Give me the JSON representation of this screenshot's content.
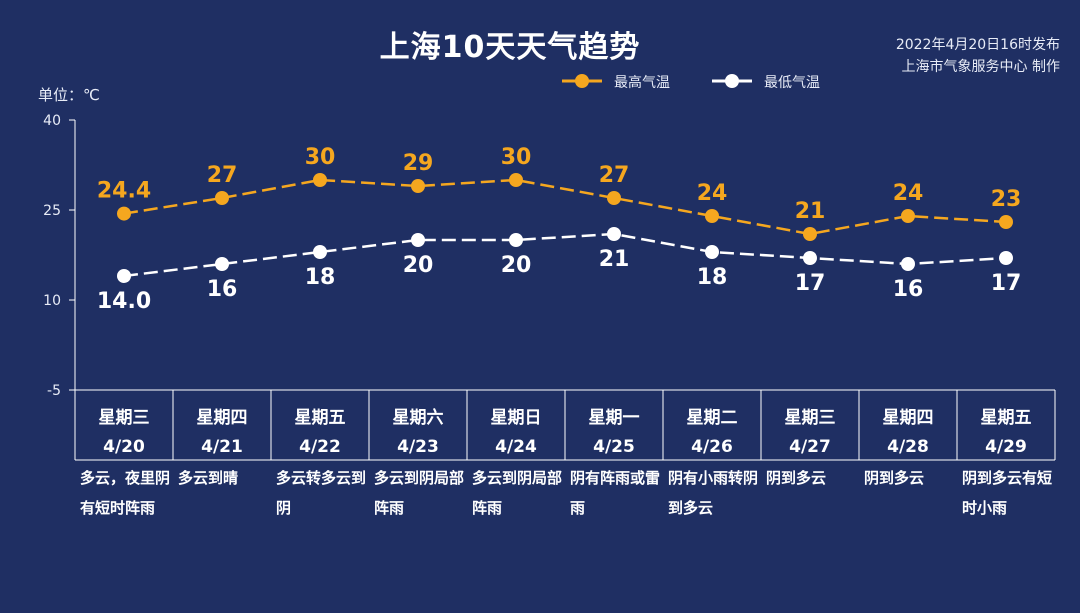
{
  "title": "上海10天天气趋势",
  "publish_info": [
    "2022年4月20日16时发布",
    "上海市气象服务中心 制作"
  ],
  "unit_label": "单位：℃",
  "colors": {
    "background": "#1f2f63",
    "high": "#f5a71f",
    "low": "#ffffff",
    "axis": "#ffffff"
  },
  "chart_data": {
    "type": "line",
    "title": "上海10天天气趋势",
    "ylabel": "单位：℃",
    "ylim": [
      -5,
      40
    ],
    "yticks": [
      -5,
      10,
      25,
      40
    ],
    "grid": false,
    "legend_position": "top-right",
    "categories": [
      "4/20",
      "4/21",
      "4/22",
      "4/23",
      "4/24",
      "4/25",
      "4/26",
      "4/27",
      "4/28",
      "4/29"
    ],
    "weekdays": [
      "星期三",
      "星期四",
      "星期五",
      "星期六",
      "星期日",
      "星期一",
      "星期二",
      "星期三",
      "星期四",
      "星期五"
    ],
    "series": [
      {
        "name": "最高气温",
        "values": [
          24.4,
          27,
          30,
          29,
          30,
          27,
          24,
          21,
          24,
          23
        ],
        "labels": [
          "24.4",
          "27",
          "30",
          "29",
          "30",
          "27",
          "24",
          "21",
          "24",
          "23"
        ]
      },
      {
        "name": "最低气温",
        "values": [
          14.0,
          16,
          18,
          20,
          20,
          21,
          18,
          17,
          16,
          17
        ],
        "labels": [
          "14.0",
          "16",
          "18",
          "20",
          "20",
          "21",
          "18",
          "17",
          "16",
          "17"
        ]
      }
    ],
    "descriptions": [
      "多云，夜里阴有短时阵雨",
      "多云到晴",
      "多云转多云到阴",
      "多云到阴局部阵雨",
      "多云到阴局部阵雨",
      "阴有阵雨或雷雨",
      "阴有小雨转阴到多云",
      "阴到多云",
      "阴到多云",
      "阴到多云有短时小雨"
    ]
  }
}
